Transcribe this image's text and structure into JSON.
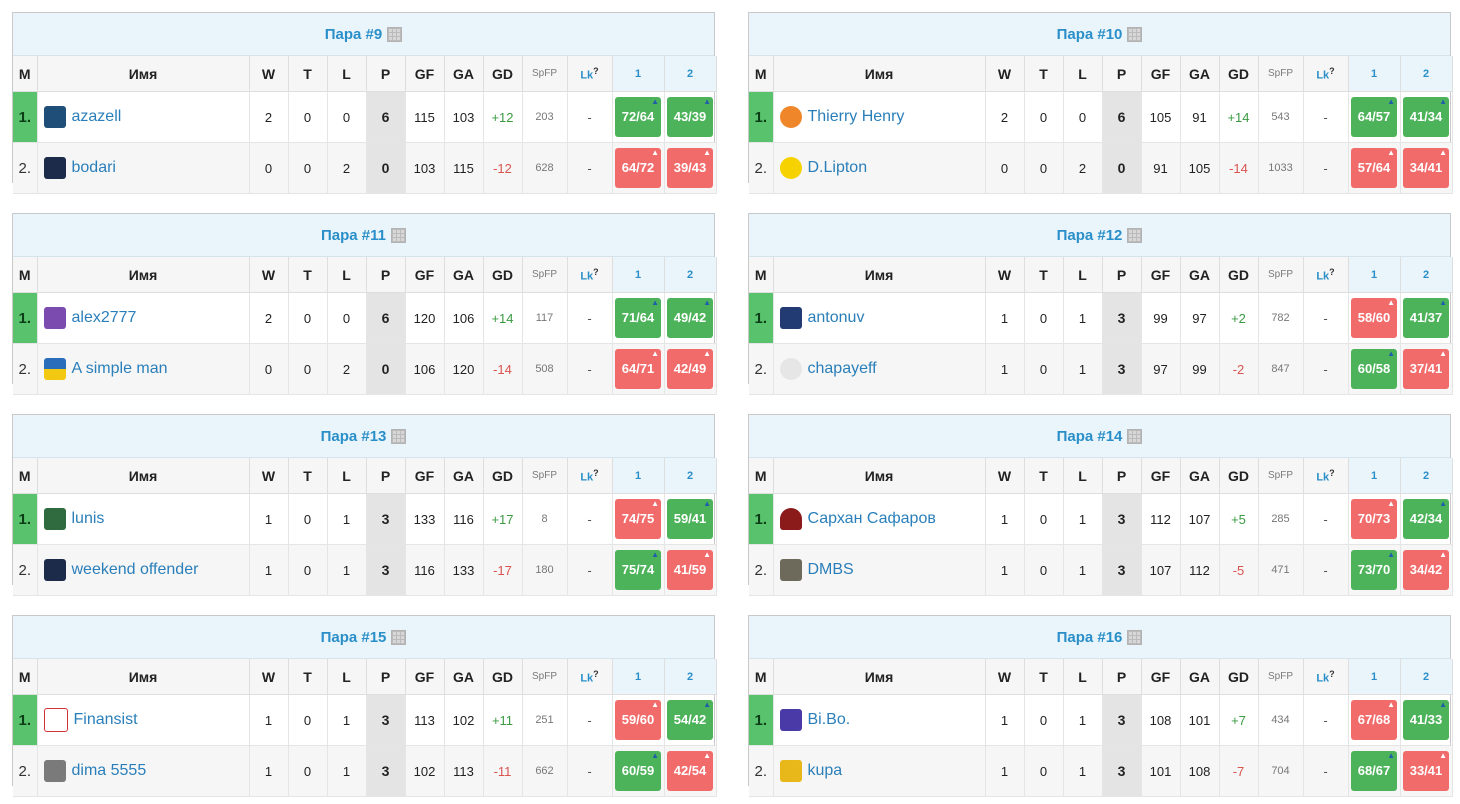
{
  "headers": {
    "m": "M",
    "name": "Имя",
    "w": "W",
    "t": "T",
    "l": "L",
    "p": "P",
    "gf": "GF",
    "ga": "GA",
    "gd": "GD",
    "spfp": "SpFP",
    "lk": "Lk",
    "lk_help": "?",
    "r1": "1",
    "r2": "2"
  },
  "pairs": [
    {
      "title": "Пара #9",
      "players": [
        {
          "pos": "1.",
          "name": "azazell",
          "avatar": "jersey-12-icon",
          "w": "2",
          "t": "0",
          "l": "0",
          "p": "6",
          "gf": "115",
          "ga": "103",
          "gd": "+12",
          "spfp": "203",
          "lk": "-",
          "r1": "72/64",
          "r1_result": "win",
          "r2": "43/39",
          "r2_result": "win"
        },
        {
          "pos": "2.",
          "name": "bodari",
          "avatar": "jersey-dark-icon",
          "w": "0",
          "t": "0",
          "l": "2",
          "p": "0",
          "gf": "103",
          "ga": "115",
          "gd": "-12",
          "spfp": "628",
          "lk": "-",
          "r1": "64/72",
          "r1_result": "loss",
          "r2": "39/43",
          "r2_result": "loss"
        }
      ]
    },
    {
      "title": "Пара #10",
      "players": [
        {
          "pos": "1.",
          "name": "Thierry Henry",
          "avatar": "orange-circle-icon",
          "w": "2",
          "t": "0",
          "l": "0",
          "p": "6",
          "gf": "105",
          "ga": "91",
          "gd": "+14",
          "spfp": "543",
          "lk": "-",
          "r1": "64/57",
          "r1_result": "win",
          "r2": "41/34",
          "r2_result": "win"
        },
        {
          "pos": "2.",
          "name": "D.Lipton",
          "avatar": "lipton-logo-icon",
          "w": "0",
          "t": "0",
          "l": "2",
          "p": "0",
          "gf": "91",
          "ga": "105",
          "gd": "-14",
          "spfp": "1033",
          "lk": "-",
          "r1": "57/64",
          "r1_result": "loss",
          "r2": "34/41",
          "r2_result": "loss"
        }
      ]
    },
    {
      "title": "Пара #11",
      "players": [
        {
          "pos": "1.",
          "name": "alex2777",
          "avatar": "jersey-27-icon",
          "w": "2",
          "t": "0",
          "l": "0",
          "p": "6",
          "gf": "120",
          "ga": "106",
          "gd": "+14",
          "spfp": "117",
          "lk": "-",
          "r1": "71/64",
          "r1_result": "win",
          "r2": "49/42",
          "r2_result": "win"
        },
        {
          "pos": "2.",
          "name": "A simple man",
          "avatar": "ukraine-flag-icon",
          "w": "0",
          "t": "0",
          "l": "2",
          "p": "0",
          "gf": "106",
          "ga": "120",
          "gd": "-14",
          "spfp": "508",
          "lk": "-",
          "r1": "64/71",
          "r1_result": "loss",
          "r2": "42/49",
          "r2_result": "loss"
        }
      ]
    },
    {
      "title": "Пара #12",
      "players": [
        {
          "pos": "1.",
          "name": "antonuv",
          "avatar": "jersey-navy-icon",
          "w": "1",
          "t": "0",
          "l": "1",
          "p": "3",
          "gf": "99",
          "ga": "97",
          "gd": "+2",
          "spfp": "782",
          "lk": "-",
          "r1": "58/60",
          "r1_result": "loss",
          "r2": "41/37",
          "r2_result": "win"
        },
        {
          "pos": "2.",
          "name": "chapayeff",
          "avatar": "sketch-figure-icon",
          "w": "1",
          "t": "0",
          "l": "1",
          "p": "3",
          "gf": "97",
          "ga": "99",
          "gd": "-2",
          "spfp": "847",
          "lk": "-",
          "r1": "60/58",
          "r1_result": "win",
          "r2": "37/41",
          "r2_result": "loss"
        }
      ]
    },
    {
      "title": "Пара #13",
      "players": [
        {
          "pos": "1.",
          "name": "lunis",
          "avatar": "green-creature-icon",
          "w": "1",
          "t": "0",
          "l": "1",
          "p": "3",
          "gf": "133",
          "ga": "116",
          "gd": "+17",
          "spfp": "8",
          "lk": "-",
          "r1": "74/75",
          "r1_result": "loss",
          "r2": "59/41",
          "r2_result": "win"
        },
        {
          "pos": "2.",
          "name": "weekend offender",
          "avatar": "jersey-dark-icon",
          "w": "1",
          "t": "0",
          "l": "1",
          "p": "3",
          "gf": "116",
          "ga": "133",
          "gd": "-17",
          "spfp": "180",
          "lk": "-",
          "r1": "75/74",
          "r1_result": "win",
          "r2": "41/59",
          "r2_result": "loss"
        }
      ]
    },
    {
      "title": "Пара #14",
      "players": [
        {
          "pos": "1.",
          "name": "Сархан Сафаров",
          "avatar": "helmet-icon",
          "w": "1",
          "t": "0",
          "l": "1",
          "p": "3",
          "gf": "112",
          "ga": "107",
          "gd": "+5",
          "spfp": "285",
          "lk": "-",
          "r1": "70/73",
          "r1_result": "loss",
          "r2": "42/34",
          "r2_result": "win"
        },
        {
          "pos": "2.",
          "name": "DMBS",
          "avatar": "photo-icon",
          "w": "1",
          "t": "0",
          "l": "1",
          "p": "3",
          "gf": "107",
          "ga": "112",
          "gd": "-5",
          "spfp": "471",
          "lk": "-",
          "r1": "73/70",
          "r1_result": "win",
          "r2": "34/42",
          "r2_result": "loss"
        }
      ]
    },
    {
      "title": "Пара #15",
      "players": [
        {
          "pos": "1.",
          "name": "Finansist",
          "avatar": "club-crest-icon",
          "w": "1",
          "t": "0",
          "l": "1",
          "p": "3",
          "gf": "113",
          "ga": "102",
          "gd": "+11",
          "spfp": "251",
          "lk": "-",
          "r1": "59/60",
          "r1_result": "loss",
          "r2": "54/42",
          "r2_result": "win"
        },
        {
          "pos": "2.",
          "name": "dima 5555",
          "avatar": "photo-gray-icon",
          "w": "1",
          "t": "0",
          "l": "1",
          "p": "3",
          "gf": "102",
          "ga": "113",
          "gd": "-11",
          "spfp": "662",
          "lk": "-",
          "r1": "60/59",
          "r1_result": "win",
          "r2": "42/54",
          "r2_result": "loss"
        }
      ]
    },
    {
      "title": "Пара #16",
      "players": [
        {
          "pos": "1.",
          "name": "Bi.Bo.",
          "avatar": "crest-purple-icon",
          "w": "1",
          "t": "0",
          "l": "1",
          "p": "3",
          "gf": "108",
          "ga": "101",
          "gd": "+7",
          "spfp": "434",
          "lk": "-",
          "r1": "67/68",
          "r1_result": "loss",
          "r2": "41/33",
          "r2_result": "win"
        },
        {
          "pos": "2.",
          "name": "kupa",
          "avatar": "crest-yellow-icon",
          "w": "1",
          "t": "0",
          "l": "1",
          "p": "3",
          "gf": "101",
          "ga": "108",
          "gd": "-7",
          "spfp": "704",
          "lk": "-",
          "r1": "68/67",
          "r1_result": "win",
          "r2": "33/41",
          "r2_result": "loss"
        }
      ]
    }
  ],
  "colors": {
    "win": "#4cb35a",
    "loss": "#f26b6b",
    "leader": "#58c26d",
    "title": "#2a8fc9",
    "link": "#2a7fba"
  }
}
